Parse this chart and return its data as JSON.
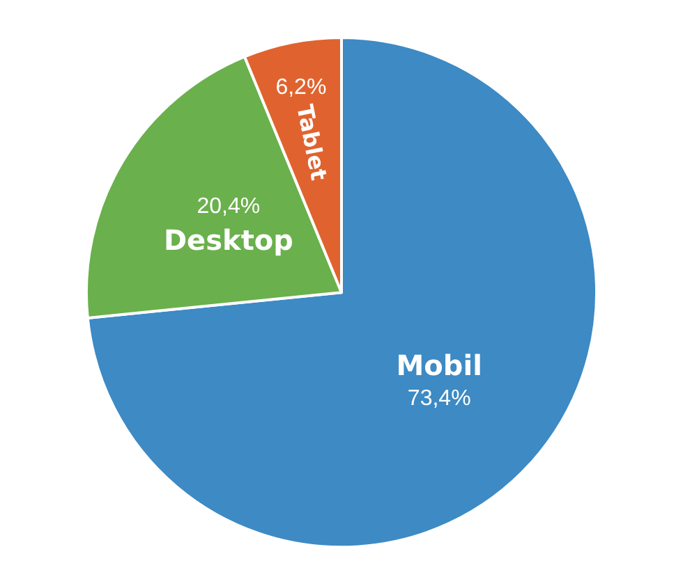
{
  "chart_data": {
    "type": "pie",
    "categories": [
      "Mobil",
      "Desktop",
      "Tablet"
    ],
    "values": [
      73.4,
      20.4,
      6.2
    ],
    "value_labels": [
      "73,4%",
      "20,4%",
      "6,2%"
    ],
    "colors": [
      "#3d8ac4",
      "#6ab04c",
      "#e0632f"
    ],
    "legend": false
  }
}
